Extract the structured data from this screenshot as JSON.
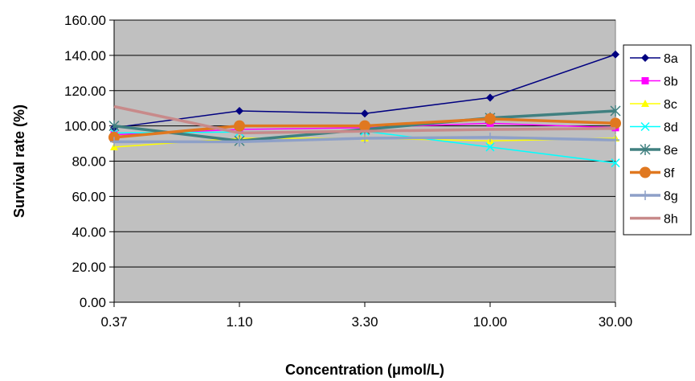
{
  "chart_data": {
    "type": "line",
    "title": "",
    "xlabel": "Concentration (μmol/L)",
    "ylabel": "Survival rate (%)",
    "categories": [
      "0.37",
      "1.10",
      "3.30",
      "10.00",
      "30.00"
    ],
    "ylim": [
      0,
      160
    ],
    "yticks": [
      "0.00",
      "20.00",
      "40.00",
      "60.00",
      "80.00",
      "100.00",
      "120.00",
      "140.00",
      "160.00"
    ],
    "grid": true,
    "legend_position": "right",
    "plot_background": "#c0c0c0",
    "series": [
      {
        "name": "8a",
        "color": "#000080",
        "marker": "diamond",
        "values": [
          99,
          108.5,
          107,
          116,
          140.5
        ]
      },
      {
        "name": "8b",
        "color": "#ff00ff",
        "marker": "square",
        "values": [
          95,
          98,
          99,
          101.5,
          99
        ]
      },
      {
        "name": "8c",
        "color": "#ffff00",
        "marker": "triangle",
        "values": [
          88,
          93,
          93,
          91.5,
          93
        ]
      },
      {
        "name": "8d",
        "color": "#00ffff",
        "marker": "x",
        "values": [
          96,
          96.5,
          97,
          88,
          79
        ]
      },
      {
        "name": "8e",
        "color": "#408080",
        "marker": "star",
        "values": [
          100,
          91.5,
          98,
          104.5,
          108.5
        ]
      },
      {
        "name": "8f",
        "color": "#e07820",
        "marker": "circle",
        "values": [
          93.5,
          100,
          100,
          104,
          101.5
        ]
      },
      {
        "name": "8g",
        "color": "#8ea0c8",
        "marker": "plus",
        "values": [
          91,
          91,
          93,
          93.5,
          92
        ]
      },
      {
        "name": "8h",
        "color": "#c88a8a",
        "marker": "none",
        "values": [
          111,
          96,
          97,
          98,
          98.5
        ]
      }
    ]
  }
}
